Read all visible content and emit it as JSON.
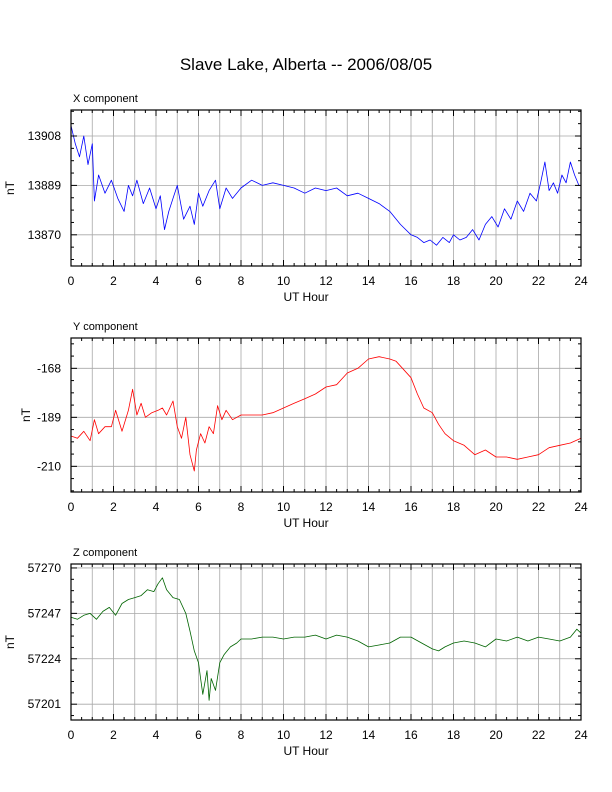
{
  "title": "Slave Lake, Alberta -- 2006/08/05",
  "chart_data": [
    {
      "type": "line",
      "title": "X component",
      "xlabel": "UT Hour",
      "ylabel": "nT",
      "xlim": [
        0,
        24
      ],
      "ylim": [
        13858,
        13918
      ],
      "xticks": [
        0,
        2,
        4,
        6,
        8,
        10,
        12,
        14,
        16,
        18,
        20,
        22,
        24
      ],
      "yticks": [
        13870,
        13889,
        13908
      ],
      "grid": true,
      "color": "#0000ff",
      "series": [
        {
          "x": [
            0,
            0.2,
            0.4,
            0.6,
            0.8,
            1.0,
            1.1,
            1.3,
            1.6,
            1.9,
            2.2,
            2.5,
            2.7,
            2.9,
            3.1,
            3.4,
            3.7,
            4.0,
            4.2,
            4.4,
            4.6,
            4.8,
            5.0,
            5.3,
            5.6,
            5.8,
            6.0,
            6.2,
            6.5,
            6.8,
            7.0,
            7.3,
            7.6,
            8.0,
            8.5,
            9.0,
            9.5,
            10.0,
            10.5,
            11.0,
            11.5,
            12.0,
            12.5,
            13.0,
            13.5,
            14.0,
            14.5,
            15.0,
            15.5,
            16.0,
            16.3,
            16.6,
            16.9,
            17.2,
            17.5,
            17.8,
            18.0,
            18.3,
            18.6,
            18.9,
            19.2,
            19.5,
            19.8,
            20.1,
            20.4,
            20.7,
            21.0,
            21.3,
            21.6,
            21.9,
            22.1,
            22.3,
            22.5,
            22.7,
            22.9,
            23.1,
            23.3,
            23.5,
            23.7,
            23.9,
            24.0
          ],
          "y": [
            13912,
            13905,
            13900,
            13908,
            13897,
            13905,
            13883,
            13893,
            13886,
            13891,
            13884,
            13879,
            13889,
            13885,
            13891,
            13882,
            13888,
            13880,
            13885,
            13872,
            13879,
            13884,
            13889,
            13876,
            13881,
            13874,
            13886,
            13881,
            13887,
            13891,
            13880,
            13888,
            13884,
            13888,
            13891,
            13889,
            13890,
            13889,
            13888,
            13886,
            13888,
            13887,
            13888,
            13885,
            13886,
            13884,
            13882,
            13879,
            13874,
            13870,
            13869,
            13867,
            13868,
            13866,
            13869,
            13867,
            13870,
            13868,
            13869,
            13872,
            13868,
            13874,
            13877,
            13873,
            13880,
            13876,
            13883,
            13879,
            13886,
            13883,
            13890,
            13898,
            13887,
            13890,
            13886,
            13893,
            13890,
            13898,
            13893,
            13889,
            13889
          ]
        }
      ]
    },
    {
      "type": "line",
      "title": "Y component",
      "xlabel": "UT Hour",
      "ylabel": "nT",
      "xlim": [
        0,
        24
      ],
      "ylim": [
        -221,
        -155
      ],
      "xticks": [
        0,
        2,
        4,
        6,
        8,
        10,
        12,
        14,
        16,
        18,
        20,
        22,
        24
      ],
      "yticks": [
        -168,
        -189,
        -210
      ],
      "grid": true,
      "color": "#ff0000",
      "series": [
        {
          "x": [
            0,
            0.3,
            0.6,
            0.9,
            1.1,
            1.3,
            1.6,
            1.9,
            2.1,
            2.4,
            2.7,
            2.9,
            3.1,
            3.3,
            3.5,
            3.8,
            4.1,
            4.3,
            4.5,
            4.8,
            5.0,
            5.2,
            5.4,
            5.6,
            5.8,
            5.9,
            6.1,
            6.3,
            6.5,
            6.7,
            6.9,
            7.1,
            7.3,
            7.6,
            8.0,
            8.5,
            9.0,
            9.5,
            10.0,
            10.5,
            11.0,
            11.5,
            12.0,
            12.5,
            13.0,
            13.5,
            14.0,
            14.5,
            15.0,
            15.3,
            15.6,
            16.0,
            16.3,
            16.6,
            17.0,
            17.3,
            17.6,
            18.0,
            18.5,
            19.0,
            19.5,
            20.0,
            20.5,
            21.0,
            21.5,
            22.0,
            22.5,
            23.0,
            23.5,
            24.0
          ],
          "y": [
            -197,
            -198,
            -195,
            -199,
            -190,
            -196,
            -193,
            -193,
            -186,
            -195,
            -186,
            -177,
            -188,
            -183,
            -189,
            -187,
            -186,
            -185,
            -188,
            -182,
            -193,
            -198,
            -189,
            -205,
            -212,
            -203,
            -196,
            -200,
            -193,
            -196,
            -184,
            -190,
            -186,
            -190,
            -188,
            -188,
            -188,
            -187,
            -185,
            -183,
            -181,
            -179,
            -176,
            -175,
            -170,
            -168,
            -164,
            -163,
            -164,
            -165,
            -168,
            -172,
            -179,
            -185,
            -187,
            -192,
            -196,
            -199,
            -201,
            -205,
            -203,
            -206,
            -206,
            -207,
            -206,
            -205,
            -202,
            -201,
            -200,
            -198
          ]
        }
      ]
    },
    {
      "type": "line",
      "title": "Z component",
      "xlabel": "UT Hour",
      "ylabel": "nT",
      "xlim": [
        0,
        24
      ],
      "ylim": [
        57193,
        57272
      ],
      "xticks": [
        0,
        2,
        4,
        6,
        8,
        10,
        12,
        14,
        16,
        18,
        20,
        22,
        24
      ],
      "yticks": [
        57201,
        57224,
        57247,
        57270
      ],
      "grid": true,
      "color": "#006400",
      "series": [
        {
          "x": [
            0,
            0.3,
            0.6,
            0.9,
            1.2,
            1.5,
            1.8,
            2.1,
            2.4,
            2.7,
            3.0,
            3.3,
            3.6,
            3.9,
            4.1,
            4.3,
            4.5,
            4.8,
            5.1,
            5.4,
            5.6,
            5.8,
            6.0,
            6.1,
            6.2,
            6.4,
            6.5,
            6.6,
            6.8,
            7.0,
            7.2,
            7.5,
            7.8,
            8.0,
            8.5,
            9.0,
            9.5,
            10.0,
            10.5,
            11.0,
            11.5,
            12.0,
            12.5,
            13.0,
            13.5,
            14.0,
            14.5,
            15.0,
            15.5,
            16.0,
            16.5,
            17.0,
            17.3,
            17.6,
            18.0,
            18.5,
            19.0,
            19.5,
            20.0,
            20.5,
            21.0,
            21.5,
            22.0,
            22.5,
            23.0,
            23.5,
            23.8,
            24.0
          ],
          "y": [
            57245,
            57244,
            57246,
            57247,
            57244,
            57248,
            57250,
            57246,
            57252,
            57254,
            57255,
            57256,
            57259,
            57258,
            57262,
            57265,
            57259,
            57255,
            57254,
            57247,
            57238,
            57228,
            57222,
            57214,
            57206,
            57218,
            57203,
            57214,
            57208,
            57222,
            57226,
            57230,
            57232,
            57234,
            57234,
            57235,
            57235,
            57234,
            57235,
            57235,
            57236,
            57234,
            57236,
            57235,
            57233,
            57230,
            57231,
            57232,
            57235,
            57235,
            57232,
            57229,
            57228,
            57230,
            57232,
            57233,
            57232,
            57230,
            57234,
            57233,
            57235,
            57233,
            57235,
            57234,
            57233,
            57235,
            57239,
            57237
          ]
        }
      ]
    }
  ]
}
